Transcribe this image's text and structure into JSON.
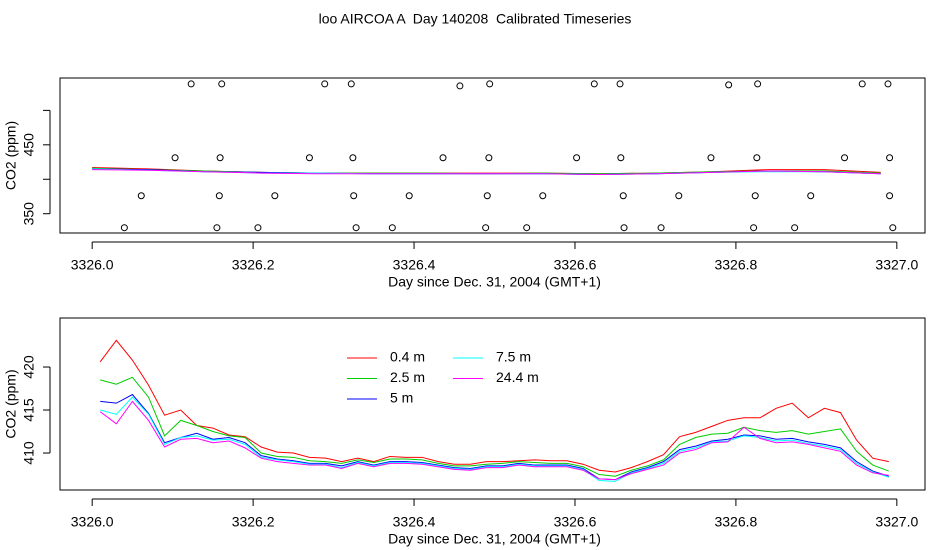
{
  "title": "loo AIRCOA A  Day 140208  Calibrated Timeseries",
  "chart_data": [
    {
      "type": "line",
      "xlabel": "Day since Dec. 31, 2004 (GMT+1)",
      "ylabel": "CO2 (ppm)",
      "xlim": [
        3325.96,
        3327.035
      ],
      "xticks": [
        {
          "value": 3326,
          "label": "3326.0"
        },
        3326.2,
        3326.4,
        3326.6,
        3326.8,
        {
          "value": 3327,
          "label": "3327.0"
        }
      ],
      "ylim": [
        322,
        547
      ],
      "yticks": [
        350,
        450
      ],
      "yminor_ticks": [
        400,
        500
      ],
      "x": [
        3326.0,
        3326.07,
        3326.14,
        3326.21,
        3326.28,
        3326.35,
        3326.42,
        3326.49,
        3326.56,
        3326.63,
        3326.7,
        3326.77,
        3326.84,
        3326.91,
        3326.98
      ],
      "series": [
        {
          "color": "#ff0000",
          "values": [
            417,
            415,
            412,
            410,
            409,
            409,
            409,
            409,
            409,
            408,
            409,
            411,
            414,
            414,
            410
          ]
        },
        {
          "color": "#00cd00",
          "values": [
            416,
            414,
            412,
            410,
            409,
            409,
            409,
            408,
            409,
            408,
            409,
            411,
            412,
            412,
            409
          ]
        },
        {
          "color": "#0000ff",
          "values": [
            415,
            414,
            411,
            410,
            409,
            408,
            408,
            408,
            408,
            407,
            408,
            410,
            412,
            411,
            408
          ]
        },
        {
          "color": "#00ffff",
          "values": [
            415,
            413,
            411,
            409,
            409,
            408,
            408,
            408,
            408,
            407,
            408,
            410,
            411,
            411,
            408
          ]
        },
        {
          "color": "#ff00ff",
          "values": [
            414,
            413,
            411,
            409,
            408,
            408,
            408,
            408,
            408,
            407,
            408,
            410,
            412,
            411,
            408
          ]
        }
      ],
      "points": {
        "x": [
          3326.123,
          3326.161,
          3326.289,
          3326.322,
          3326.457,
          3326.494,
          3326.624,
          3326.656,
          3326.791,
          3326.827,
          3326.957,
          3326.989,
          3326.103,
          3326.159,
          3326.27,
          3326.324,
          3326.436,
          3326.493,
          3326.602,
          3326.657,
          3326.769,
          3326.826,
          3326.935,
          3326.991,
          3326.061,
          3326.158,
          3326.227,
          3326.325,
          3326.394,
          3326.491,
          3326.56,
          3326.66,
          3326.729,
          3326.824,
          3326.893,
          3326.991,
          3326.04,
          3326.155,
          3326.206,
          3326.328,
          3326.373,
          3326.489,
          3326.54,
          3326.661,
          3326.707,
          3326.822,
          3326.873,
          3326.995
        ],
        "y": [
          538.4,
          538.4,
          538.4,
          538.4,
          535.5,
          538.4,
          538.4,
          538.4,
          537.0,
          538.4,
          538.4,
          538.4,
          431.2,
          431.2,
          431.2,
          431.2,
          431.2,
          431.2,
          431.2,
          431.2,
          431.2,
          431.2,
          431.2,
          431.2,
          376.1,
          376.1,
          376.1,
          376.1,
          376.1,
          376.1,
          376.1,
          376.1,
          376.1,
          376.1,
          376.1,
          376.1,
          329.7,
          329.7,
          329.7,
          329.7,
          329.7,
          329.7,
          329.7,
          329.7,
          329.7,
          329.7,
          329.7,
          329.7
        ]
      }
    },
    {
      "type": "line",
      "xlabel": "Day since Dec. 31, 2004 (GMT+1)",
      "ylabel": "CO2 (ppm)",
      "xlim": [
        3325.96,
        3327.035
      ],
      "xticks": [
        {
          "value": 3326,
          "label": "3326.0"
        },
        3326.2,
        3326.4,
        3326.6,
        3326.8,
        {
          "value": 3327,
          "label": "3327.0"
        }
      ],
      "ylim": [
        405.7,
        425.7
      ],
      "yticks": [
        410,
        415,
        420
      ],
      "legend": "top",
      "x": [
        3326.01,
        3326.03,
        3326.05,
        3326.07,
        3326.09,
        3326.11,
        3326.13,
        3326.15,
        3326.17,
        3326.19,
        3326.21,
        3326.23,
        3326.25,
        3326.27,
        3326.29,
        3326.31,
        3326.33,
        3326.35,
        3326.37,
        3326.39,
        3326.41,
        3326.43,
        3326.45,
        3326.47,
        3326.49,
        3326.51,
        3326.53,
        3326.55,
        3326.57,
        3326.59,
        3326.61,
        3326.63,
        3326.65,
        3326.67,
        3326.69,
        3326.71,
        3326.73,
        3326.75,
        3326.77,
        3326.79,
        3326.81,
        3326.83,
        3326.85,
        3326.87,
        3326.89,
        3326.91,
        3326.93,
        3326.95,
        3326.97,
        3326.99
      ],
      "series": [
        {
          "name": "0.4 m",
          "color": "#ff0000",
          "values": [
            420.6,
            423.1,
            420.8,
            417.9,
            414.4,
            415.0,
            413.2,
            412.9,
            412.1,
            411.9,
            410.7,
            410.1,
            410.0,
            409.5,
            409.4,
            409.0,
            409.4,
            409.0,
            409.6,
            409.5,
            409.5,
            409.0,
            408.7,
            408.7,
            409.0,
            409.0,
            409.1,
            409.2,
            409.1,
            409.1,
            408.7,
            408.0,
            407.8,
            408.3,
            409.0,
            409.8,
            411.9,
            412.4,
            413.1,
            413.8,
            414.1,
            414.1,
            415.2,
            415.8,
            414.1,
            415.2,
            414.7,
            411.5,
            409.4,
            409.0
          ]
        },
        {
          "name": "2.5 m",
          "color": "#00cd00",
          "values": [
            418.5,
            418.0,
            418.8,
            416.5,
            412.0,
            413.8,
            413.2,
            412.5,
            412.0,
            411.8,
            410.0,
            409.6,
            409.5,
            409.1,
            409.0,
            408.8,
            409.2,
            408.9,
            409.3,
            409.3,
            409.2,
            408.8,
            408.5,
            408.5,
            408.7,
            408.8,
            409.0,
            408.9,
            408.8,
            408.8,
            408.4,
            407.5,
            407.3,
            408.0,
            408.5,
            409.2,
            411.0,
            411.8,
            412.2,
            412.3,
            413.0,
            412.6,
            412.4,
            412.6,
            412.2,
            412.5,
            412.8,
            410.2,
            408.6,
            407.9
          ]
        },
        {
          "name": "5 m",
          "color": "#0000ff",
          "values": [
            416.0,
            415.8,
            416.8,
            414.6,
            411.2,
            411.8,
            412.3,
            411.6,
            411.8,
            411.2,
            409.7,
            409.3,
            409.1,
            408.8,
            408.8,
            408.5,
            409.0,
            408.6,
            409.0,
            409.0,
            408.9,
            408.6,
            408.3,
            408.2,
            408.5,
            408.5,
            408.8,
            408.6,
            408.6,
            408.6,
            408.2,
            407.0,
            406.9,
            407.8,
            408.3,
            409.0,
            410.4,
            410.8,
            411.4,
            411.6,
            412.1,
            412.0,
            411.6,
            411.7,
            411.3,
            411.0,
            410.6,
            409.0,
            407.9,
            407.3
          ]
        },
        {
          "name": "7.5 m",
          "color": "#00ffff",
          "values": [
            415.0,
            414.5,
            416.5,
            414.5,
            411.0,
            411.8,
            412.0,
            411.5,
            411.6,
            411.0,
            409.5,
            409.2,
            409.0,
            408.7,
            408.7,
            408.3,
            408.9,
            408.5,
            408.9,
            408.9,
            408.8,
            408.5,
            408.2,
            408.1,
            408.4,
            408.4,
            408.7,
            408.5,
            408.5,
            408.5,
            408.1,
            406.8,
            406.7,
            407.7,
            408.2,
            408.8,
            410.2,
            410.6,
            411.3,
            411.4,
            412.0,
            411.8,
            411.4,
            411.5,
            411.1,
            410.8,
            410.4,
            408.8,
            407.8,
            407.2
          ]
        },
        {
          "name": "24.4 m",
          "color": "#ff00ff",
          "values": [
            414.8,
            413.4,
            416.0,
            413.8,
            410.7,
            411.6,
            411.7,
            411.2,
            411.4,
            410.6,
            409.4,
            409.0,
            408.8,
            408.6,
            408.6,
            408.2,
            408.8,
            408.4,
            408.8,
            408.8,
            408.7,
            408.4,
            408.1,
            408.0,
            408.3,
            408.3,
            408.6,
            408.4,
            408.4,
            408.4,
            408.0,
            407.0,
            406.9,
            407.6,
            408.1,
            408.6,
            410.0,
            410.4,
            411.2,
            411.3,
            413.0,
            411.7,
            411.2,
            411.3,
            411.0,
            410.6,
            410.2,
            408.6,
            407.7,
            407.4
          ]
        }
      ]
    }
  ]
}
